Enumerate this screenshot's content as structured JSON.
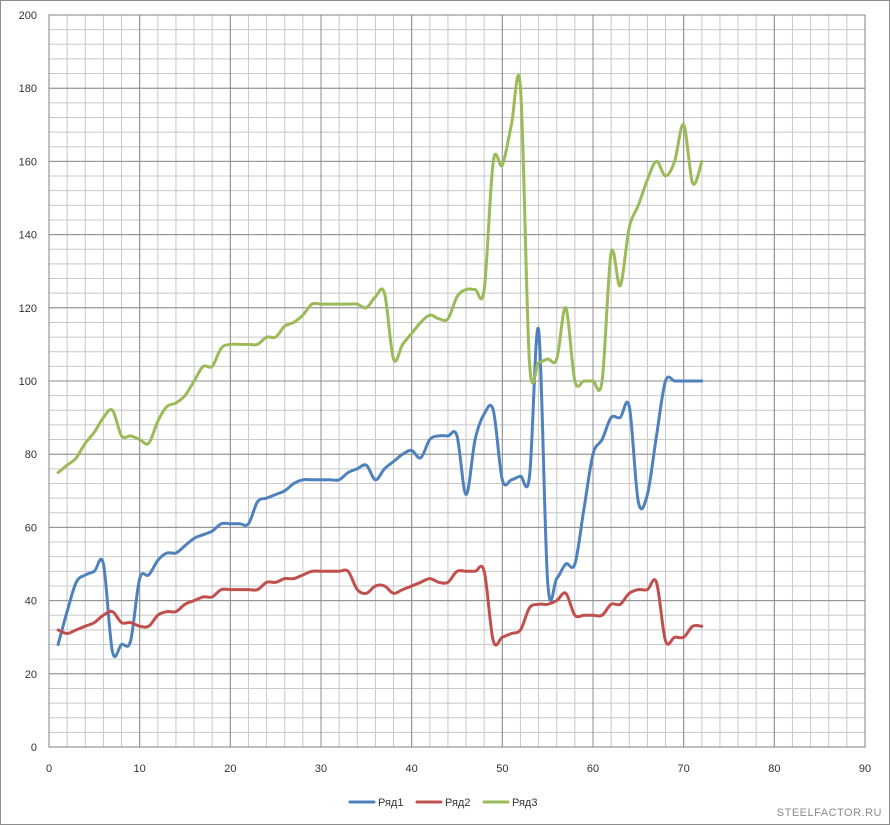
{
  "watermark": "STEELFACTOR.RU",
  "chart_data": {
    "type": "line",
    "title": "",
    "xlabel": "",
    "ylabel": "",
    "xlim": [
      0,
      90
    ],
    "ylim": [
      0,
      200
    ],
    "x_ticks": [
      0,
      10,
      20,
      30,
      40,
      50,
      60,
      70,
      80,
      90
    ],
    "y_ticks": [
      0,
      20,
      40,
      60,
      80,
      100,
      120,
      140,
      160,
      180,
      200
    ],
    "grid": true,
    "legend_position": "bottom",
    "x": [
      1,
      2,
      3,
      4,
      5,
      6,
      7,
      8,
      9,
      10,
      11,
      12,
      13,
      14,
      15,
      16,
      17,
      18,
      19,
      20,
      21,
      22,
      23,
      24,
      25,
      26,
      27,
      28,
      29,
      30,
      31,
      32,
      33,
      34,
      35,
      36,
      37,
      38,
      39,
      40,
      41,
      42,
      43,
      44,
      45,
      46,
      47,
      48,
      49,
      50,
      51,
      52,
      53,
      54,
      55,
      56,
      57,
      58,
      59,
      60,
      61,
      62,
      63,
      64,
      65,
      66,
      67,
      68,
      69,
      70,
      71,
      72
    ],
    "series": [
      {
        "name": "Ряд1",
        "color": "#4f81bd",
        "values": [
          28,
          37,
          45,
          47,
          48,
          50,
          26,
          28,
          29,
          46,
          47,
          51,
          53,
          53,
          55,
          57,
          58,
          59,
          61,
          61,
          61,
          61,
          67,
          68,
          69,
          70,
          72,
          73,
          73,
          73,
          73,
          73,
          75,
          76,
          77,
          73,
          76,
          78,
          80,
          81,
          79,
          84,
          85,
          85,
          85,
          69,
          84,
          91,
          92,
          73,
          73,
          74,
          74,
          114,
          45,
          46,
          50,
          50,
          65,
          80,
          84,
          90,
          90,
          93,
          67,
          69,
          85,
          100,
          100,
          100,
          100,
          100
        ]
      },
      {
        "name": "Ряд2",
        "color": "#c0504d",
        "values": [
          32,
          31,
          32,
          33,
          34,
          36,
          37,
          34,
          34,
          33,
          33,
          36,
          37,
          37,
          39,
          40,
          41,
          41,
          43,
          43,
          43,
          43,
          43,
          45,
          45,
          46,
          46,
          47,
          48,
          48,
          48,
          48,
          48,
          43,
          42,
          44,
          44,
          42,
          43,
          44,
          45,
          46,
          45,
          45,
          48,
          48,
          48,
          48,
          29,
          30,
          31,
          32,
          38,
          39,
          39,
          40,
          42,
          36,
          36,
          36,
          36,
          39,
          39,
          42,
          43,
          43,
          45,
          29,
          30,
          30,
          33,
          33
        ]
      },
      {
        "name": "Ряд3",
        "color": "#9bbb59",
        "values": [
          75,
          77,
          79,
          83,
          86,
          90,
          92,
          85,
          85,
          84,
          83,
          89,
          93,
          94,
          96,
          100,
          104,
          104,
          109,
          110,
          110,
          110,
          110,
          112,
          112,
          115,
          116,
          118,
          121,
          121,
          121,
          121,
          121,
          121,
          120,
          123,
          124,
          106,
          110,
          113,
          116,
          118,
          117,
          117,
          123,
          125,
          125,
          125,
          160,
          159,
          170,
          180,
          105,
          105,
          106,
          106,
          120,
          100,
          100,
          100,
          100,
          135,
          126,
          142,
          148,
          155,
          160,
          156,
          160,
          170,
          154,
          160
        ]
      }
    ]
  }
}
